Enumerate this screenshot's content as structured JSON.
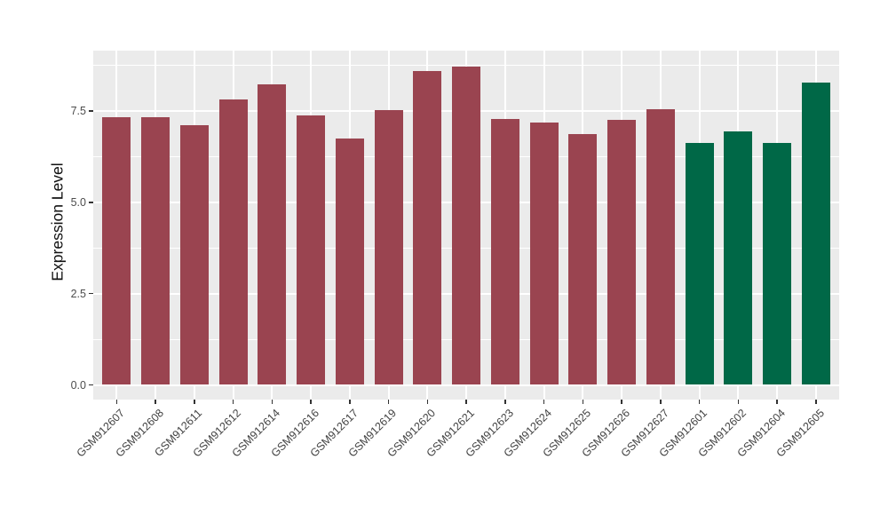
{
  "chart_data": {
    "type": "bar",
    "title": "",
    "xlabel": "",
    "ylabel": "Expression Level",
    "legend_position": "none",
    "grid": true,
    "panel_bg": "#EBEBEB",
    "grid_color": "#FFFFFF",
    "tick_color": "#333333",
    "axis_text_color": "#4D4D4D",
    "ylim": [
      0,
      9.16
    ],
    "ytick_values": [
      0,
      2.5,
      5,
      7.5
    ],
    "ytick_labels": [
      "0.0",
      "2.5",
      "5.0",
      "7.5"
    ],
    "minor_gridline_values": [
      1.25,
      3.75,
      6.25,
      8.75
    ],
    "group_colors": {
      "maroon": "#9A4450",
      "green": "#006847"
    },
    "categories": [
      "GSM912607",
      "GSM912608",
      "GSM912611",
      "GSM912612",
      "GSM912614",
      "GSM912616",
      "GSM912617",
      "GSM912619",
      "GSM912620",
      "GSM912621",
      "GSM912623",
      "GSM912624",
      "GSM912625",
      "GSM912626",
      "GSM912627",
      "GSM912601",
      "GSM912602",
      "GSM912604",
      "GSM912605"
    ],
    "values": [
      7.34,
      7.34,
      7.12,
      7.82,
      8.24,
      7.38,
      6.74,
      7.52,
      8.6,
      8.72,
      7.29,
      7.18,
      6.87,
      7.25,
      7.56,
      6.63,
      6.95,
      6.62,
      8.29
    ],
    "groups": [
      "maroon",
      "maroon",
      "maroon",
      "maroon",
      "maroon",
      "maroon",
      "maroon",
      "maroon",
      "maroon",
      "maroon",
      "maroon",
      "maroon",
      "maroon",
      "maroon",
      "maroon",
      "green",
      "green",
      "green",
      "green"
    ]
  }
}
